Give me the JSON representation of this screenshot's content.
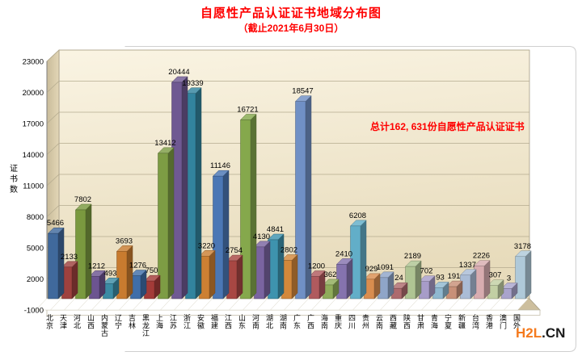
{
  "title": "自愿性产品认证证书地域分布图",
  "subtitle": "（截止2021年6月30日）",
  "annotation": "总计162, 631份自愿性产品认证证书",
  "watermark": {
    "brand": "H2L",
    "suffix": ".CN",
    "brand_color": "#F57A1D"
  },
  "colors": {
    "title_red": "#FF0000",
    "plot_background_top": "#FAF4E3",
    "plot_background_bottom": "#E7DBBB",
    "side_wall": "#C9BB9A",
    "floor": "#CDBF9E",
    "gridline": "#B5AB8F"
  },
  "chart_data": {
    "type": "bar",
    "style": "3d-column",
    "title": "自愿性产品认证证书地域分布图",
    "subtitle": "（截止2021年6月30日）",
    "annotation": "总计162, 631份自愿性产品认证证书",
    "total": "162,631",
    "xlabel": "",
    "ylabel": "证书数",
    "ylim": [
      -1000,
      23000
    ],
    "yticks": [
      -1000,
      2000,
      5000,
      8000,
      11000,
      14000,
      17000,
      20000,
      23000
    ],
    "grid": true,
    "legend": false,
    "categories": [
      "北京",
      "天津",
      "河北",
      "山西",
      "内蒙古",
      "辽宁",
      "吉林",
      "黑龙江",
      "上海",
      "江苏",
      "浙江",
      "安徽",
      "福建",
      "江西",
      "山东",
      "河南",
      "湖北",
      "湖南",
      "广东",
      "广西",
      "海南",
      "重庆",
      "四川",
      "贵州",
      "云南",
      "西藏",
      "陕西",
      "甘肃",
      "青海",
      "宁夏",
      "新疆",
      "台湾",
      "香港",
      "澳门",
      "国外"
    ],
    "values": [
      5466,
      2133,
      7802,
      1212,
      493,
      3693,
      1276,
      750,
      13412,
      20444,
      19339,
      3220,
      11146,
      2754,
      16721,
      4130,
      4841,
      2802,
      18547,
      1200,
      362,
      2410,
      6208,
      929,
      1091,
      24,
      2189,
      702,
      93,
      191,
      1337,
      2226,
      307,
      3,
      3178
    ],
    "bar_colors": [
      "#40699C",
      "#9E413E",
      "#7A993F",
      "#6C5490",
      "#3B8BA3",
      "#C87B2F",
      "#3F6EA9",
      "#A33B38",
      "#7D9C44",
      "#6F5992",
      "#32849E",
      "#CC8033",
      "#4B77B5",
      "#A84743",
      "#85A84C",
      "#7A64A0",
      "#3E93AE",
      "#D2883B",
      "#7090C5",
      "#B05A5E",
      "#8FAC5A",
      "#8573AE",
      "#62AEC8",
      "#D98D4F",
      "#8FA5C8",
      "#AD6A6D",
      "#AFC493",
      "#A79CC8",
      "#8FB8D0",
      "#C89078",
      "#AABCD6",
      "#D8ACB0",
      "#C2CFA4",
      "#A9A3CC",
      "#AFC9D9"
    ]
  }
}
